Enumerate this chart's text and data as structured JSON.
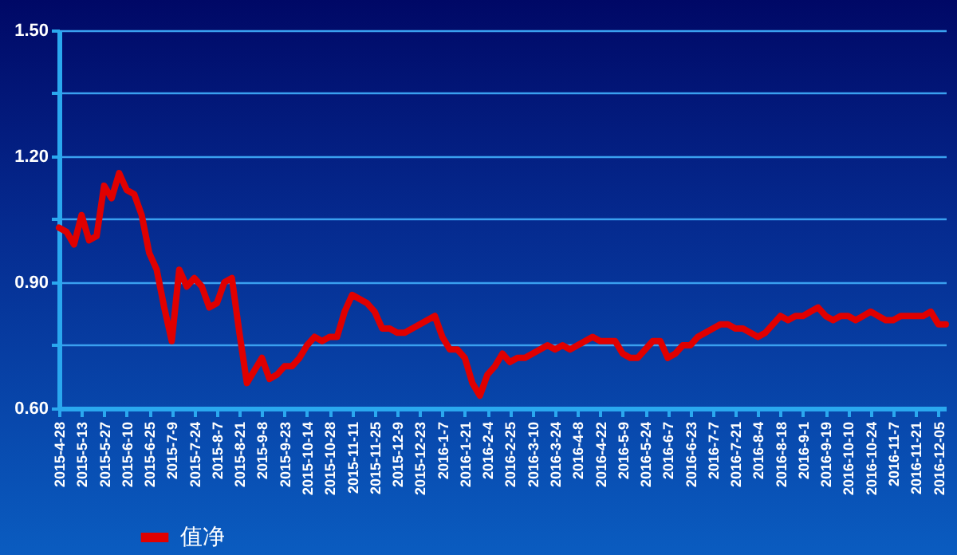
{
  "chart_data": {
    "type": "line",
    "categories": [
      "2015-4-28",
      null,
      null,
      "2015-5-13",
      null,
      null,
      "2015-5-27",
      null,
      null,
      "2015-6-10",
      null,
      null,
      "2015-6-25",
      null,
      null,
      "2015-7-9",
      null,
      null,
      "2015-7-24",
      null,
      null,
      "2015-8-7",
      null,
      null,
      "2015-8-21",
      null,
      null,
      "2015-9-8",
      null,
      null,
      "2015-9-23",
      null,
      null,
      "2015-10-14",
      null,
      null,
      "2015-10-28",
      null,
      null,
      "2015-11-11",
      null,
      null,
      "2015-11-25",
      null,
      null,
      "2015-12-9",
      null,
      null,
      "2015-12-23",
      null,
      null,
      "2016-1-7",
      null,
      null,
      "2016-1-21",
      null,
      null,
      "2016-2-4",
      null,
      null,
      "2016-2-25",
      null,
      null,
      "2016-3-10",
      null,
      null,
      "2016-3-24",
      null,
      null,
      "2016-4-8",
      null,
      null,
      "2016-4-22",
      null,
      null,
      "2016-5-9",
      null,
      null,
      "2016-5-24",
      null,
      null,
      "2016-6-7",
      null,
      null,
      "2016-6-23",
      null,
      null,
      "2016-7-7",
      null,
      null,
      "2016-7-21",
      null,
      null,
      "2016-8-4",
      null,
      null,
      "2016-8-18",
      null,
      null,
      "2016-9-1",
      null,
      null,
      "2016-9-19",
      null,
      null,
      "2016-10-10",
      null,
      null,
      "2016-10-24",
      null,
      null,
      "2016-11-7",
      null,
      null,
      "2016-11-21",
      null,
      null,
      "2016-12-05",
      null
    ],
    "series": [
      {
        "name": "值净",
        "color": "#e00000",
        "values": [
          1.03,
          1.02,
          0.99,
          1.06,
          1.0,
          1.01,
          1.13,
          1.1,
          1.16,
          1.12,
          1.11,
          1.06,
          0.97,
          0.93,
          0.84,
          0.76,
          0.93,
          0.89,
          0.91,
          0.89,
          0.84,
          0.85,
          0.9,
          0.91,
          0.78,
          0.66,
          0.69,
          0.72,
          0.67,
          0.68,
          0.7,
          0.7,
          0.72,
          0.75,
          0.77,
          0.76,
          0.77,
          0.77,
          0.83,
          0.87,
          0.86,
          0.85,
          0.83,
          0.79,
          0.79,
          0.78,
          0.78,
          0.79,
          0.8,
          0.81,
          0.82,
          0.77,
          0.74,
          0.74,
          0.72,
          0.66,
          0.63,
          0.68,
          0.7,
          0.73,
          0.71,
          0.72,
          0.72,
          0.73,
          0.74,
          0.75,
          0.74,
          0.75,
          0.74,
          0.75,
          0.76,
          0.77,
          0.76,
          0.76,
          0.76,
          0.73,
          0.72,
          0.72,
          0.74,
          0.76,
          0.76,
          0.72,
          0.73,
          0.75,
          0.75,
          0.77,
          0.78,
          0.79,
          0.8,
          0.8,
          0.79,
          0.79,
          0.78,
          0.77,
          0.78,
          0.8,
          0.82,
          0.81,
          0.82,
          0.82,
          0.83,
          0.84,
          0.82,
          0.81,
          0.82,
          0.82,
          0.81,
          0.82,
          0.83,
          0.82,
          0.81,
          0.81,
          0.82,
          0.82,
          0.82,
          0.82,
          0.83,
          0.8,
          0.8
        ]
      }
    ],
    "ylim": [
      0.6,
      1.5
    ],
    "yticks": [
      {
        "value": 0.6,
        "label": "0.60"
      },
      {
        "value": 0.75,
        "label": null
      },
      {
        "value": 0.9,
        "label": "0.90"
      },
      {
        "value": 1.05,
        "label": null
      },
      {
        "value": 1.2,
        "label": "1.20"
      },
      {
        "value": 1.35,
        "label": null
      },
      {
        "value": 1.5,
        "label": "1.50"
      }
    ],
    "grid": "y",
    "legend": "bottom left",
    "marker": "none",
    "line_style": "solid"
  }
}
